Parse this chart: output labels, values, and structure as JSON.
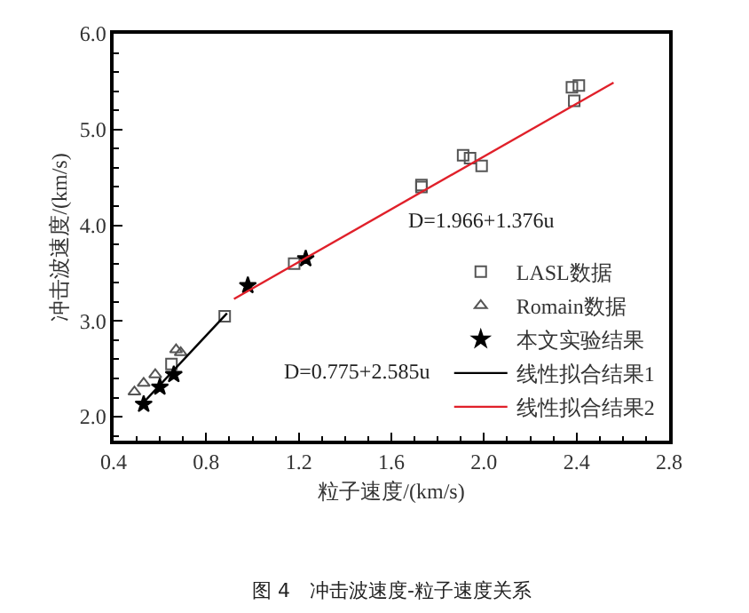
{
  "chart_data": {
    "type": "scatter",
    "xlabel": "粒子速度/(km/s)",
    "ylabel": "冲击波速度/(km/s)",
    "xlim": [
      0.4,
      2.8
    ],
    "ylim": [
      1.75,
      6.0
    ],
    "xticks": [
      0.4,
      0.8,
      1.2,
      1.6,
      {
        "value": 2,
        "label": "2.0"
      },
      2.4,
      2.8
    ],
    "yticks": [
      {
        "value": 2,
        "label": "2.0"
      },
      {
        "value": 3,
        "label": "3.0"
      },
      {
        "value": 4,
        "label": "4.0"
      },
      {
        "value": 5,
        "label": "5.0"
      },
      {
        "value": 6,
        "label": "6.0"
      }
    ],
    "legend": "bottom right",
    "series": [
      {
        "name": "LASL数据",
        "marker": "square",
        "color": "#555555",
        "x": [
          0.65,
          0.88,
          1.18,
          1.73,
          1.73,
          1.91,
          1.94,
          1.99,
          2.38,
          2.39,
          2.41
        ],
        "values": [
          2.55,
          3.05,
          3.6,
          4.4,
          4.42,
          4.73,
          4.7,
          4.62,
          5.44,
          5.3,
          5.46
        ]
      },
      {
        "name": "Romain数据",
        "marker": "triangle",
        "color": "#555555",
        "x": [
          0.49,
          0.53,
          0.58,
          0.67,
          0.69
        ],
        "values": [
          2.26,
          2.35,
          2.44,
          2.7,
          2.67
        ]
      },
      {
        "name": "本文实验结果",
        "marker": "star",
        "color": "#000000",
        "x": [
          0.53,
          0.6,
          0.66,
          0.98,
          1.23
        ],
        "values": [
          2.13,
          2.31,
          2.44,
          3.37,
          3.65
        ]
      },
      {
        "name": "线性拟合结果1",
        "type": "line",
        "marker": "none",
        "color": "#000000",
        "x": [
          0.53,
          0.89
        ],
        "values": [
          2.15,
          3.08
        ]
      },
      {
        "name": "线性拟合结果2",
        "type": "line",
        "marker": "none",
        "color": "#e0202a",
        "x": [
          0.92,
          2.56
        ],
        "values": [
          3.23,
          5.49
        ]
      }
    ],
    "annotations": [
      "D=0.775+2.585u",
      "D=1.966+1.376u",
      "图 4　冲击波速度-粒子速度关系"
    ]
  }
}
